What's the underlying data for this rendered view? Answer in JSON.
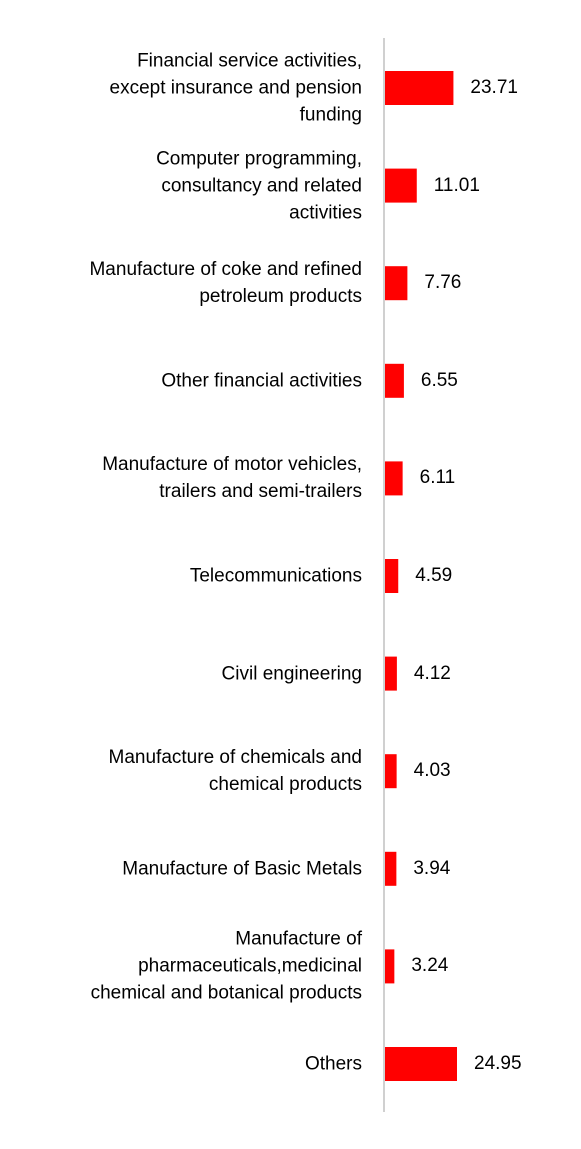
{
  "chart_data": {
    "type": "bar",
    "orientation": "horizontal",
    "categories": [
      "Financial service activities, except insurance and pension funding",
      "Computer programming, consultancy and related activities",
      "Manufacture of coke and refined petroleum products",
      "Other financial activities",
      "Manufacture of motor vehicles, trailers and semi-trailers",
      "Telecommunications",
      "Civil engineering",
      "Manufacture of chemicals and chemical products",
      "Manufacture of Basic Metals",
      "Manufacture of pharmaceuticals,medicinal chemical and botanical products",
      "Others"
    ],
    "category_lines": [
      [
        "Financial service activities,",
        "except insurance and pension",
        "funding"
      ],
      [
        "Computer programming,",
        "consultancy and related",
        "activities"
      ],
      [
        "Manufacture of coke and refined",
        "petroleum products"
      ],
      [
        "Other financial activities"
      ],
      [
        "Manufacture of motor vehicles,",
        "trailers and semi-trailers"
      ],
      [
        "Telecommunications"
      ],
      [
        "Civil engineering"
      ],
      [
        "Manufacture of chemicals and",
        "chemical products"
      ],
      [
        "Manufacture of Basic Metals"
      ],
      [
        "Manufacture of",
        "pharmaceuticals,medicinal",
        "chemical and botanical products"
      ],
      [
        "Others"
      ]
    ],
    "values": [
      23.71,
      11.01,
      7.76,
      6.55,
      6.11,
      4.59,
      4.12,
      4.03,
      3.94,
      3.24,
      24.95
    ],
    "value_labels": [
      "23.71",
      "11.01",
      "7.76",
      "6.55",
      "6.11",
      "4.59",
      "4.12",
      "4.03",
      "3.94",
      "3.24",
      "24.95"
    ],
    "xlim": [
      0,
      24.95
    ],
    "title": "",
    "xlabel": "",
    "ylabel": "",
    "grid": false,
    "legend": "none",
    "colors": {
      "bar": "#ff0000",
      "axis": "#d0d0d0",
      "text": "#000000"
    }
  }
}
